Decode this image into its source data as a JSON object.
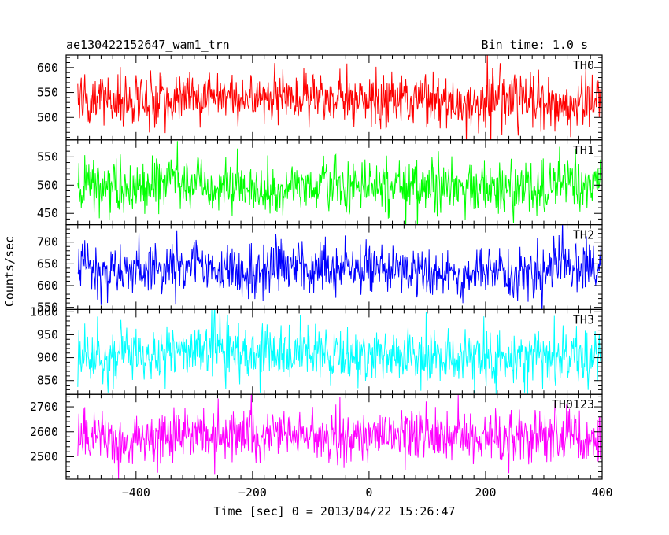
{
  "header": {
    "left": "ae130422152647_wam1_trn",
    "right": "Bin time: 1.0 s"
  },
  "chart_data": {
    "type": "line",
    "xlabel": "Time [sec] 0 = 2013/04/22 15:26:47",
    "ylabel": "Counts/sec",
    "xlim": [
      -520,
      400
    ],
    "x_ticks": [
      -400,
      -200,
      0,
      200,
      400
    ],
    "x_tick_labels": [
      "−400",
      "−200",
      "0",
      "200",
      "400"
    ],
    "x_data_range": [
      -500,
      398
    ],
    "bin_time_s": 1.0,
    "panels": [
      {
        "name": "TH0",
        "color": "#ff0000",
        "ylim": [
          455,
          625
        ],
        "y_ticks": [
          500,
          550,
          600
        ],
        "y_tick_labels": [
          "500",
          "550",
          "600"
        ],
        "mean": 535,
        "spread": 28
      },
      {
        "name": "TH1",
        "color": "#00ff00",
        "ylim": [
          430,
          580
        ],
        "y_ticks": [
          450,
          500,
          550
        ],
        "y_tick_labels": [
          "450",
          "500",
          "550"
        ],
        "mean": 498,
        "spread": 25
      },
      {
        "name": "TH2",
        "color": "#0000ff",
        "ylim": [
          545,
          740
        ],
        "y_ticks": [
          550,
          600,
          650,
          700
        ],
        "y_tick_labels": [
          "550",
          "600",
          "650",
          "700"
        ],
        "mean": 638,
        "spread": 30
      },
      {
        "name": "TH3",
        "color": "#00ffff",
        "ylim": [
          820,
          1005
        ],
        "y_ticks": [
          850,
          900,
          950,
          1000
        ],
        "y_tick_labels": [
          "850",
          "900",
          "950",
          "1000"
        ],
        "mean": 908,
        "spread": 32
      },
      {
        "name": "TH0123",
        "color": "#ff00ff",
        "ylim": [
          2410,
          2750
        ],
        "y_ticks": [
          2500,
          2600,
          2700
        ],
        "y_tick_labels": [
          "2500",
          "2600",
          "2700"
        ],
        "mean": 2578,
        "spread": 58
      }
    ]
  }
}
